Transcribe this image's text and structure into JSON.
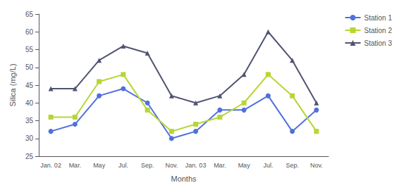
{
  "chart_data": {
    "type": "line",
    "xlabel": "Months",
    "ylabel": "Silica (mg/L)",
    "categories": [
      "Jan. 02",
      "Mar.",
      "May",
      "Jul.",
      "Sep.",
      "Nov.",
      "Jan. 03",
      "Mar.",
      "May",
      "Jul.",
      "Sep.",
      "Nov."
    ],
    "series": [
      {
        "name": "Station 1",
        "marker": "circle",
        "values": [
          32,
          34,
          42,
          44,
          40,
          30,
          32,
          38,
          38,
          42,
          32,
          38
        ]
      },
      {
        "name": "Station 2",
        "marker": "square",
        "values": [
          36,
          36,
          46,
          48,
          38,
          32,
          34,
          36,
          40,
          48,
          42,
          32
        ]
      },
      {
        "name": "Station 3",
        "marker": "triangle",
        "values": [
          44,
          44,
          52,
          56,
          54,
          42,
          40,
          42,
          48,
          60,
          52,
          40
        ]
      }
    ],
    "ylim": [
      25,
      65
    ],
    "yticks": [
      25,
      30,
      35,
      40,
      45,
      50,
      55,
      60,
      65
    ],
    "grid": false,
    "legend": "upper right"
  }
}
